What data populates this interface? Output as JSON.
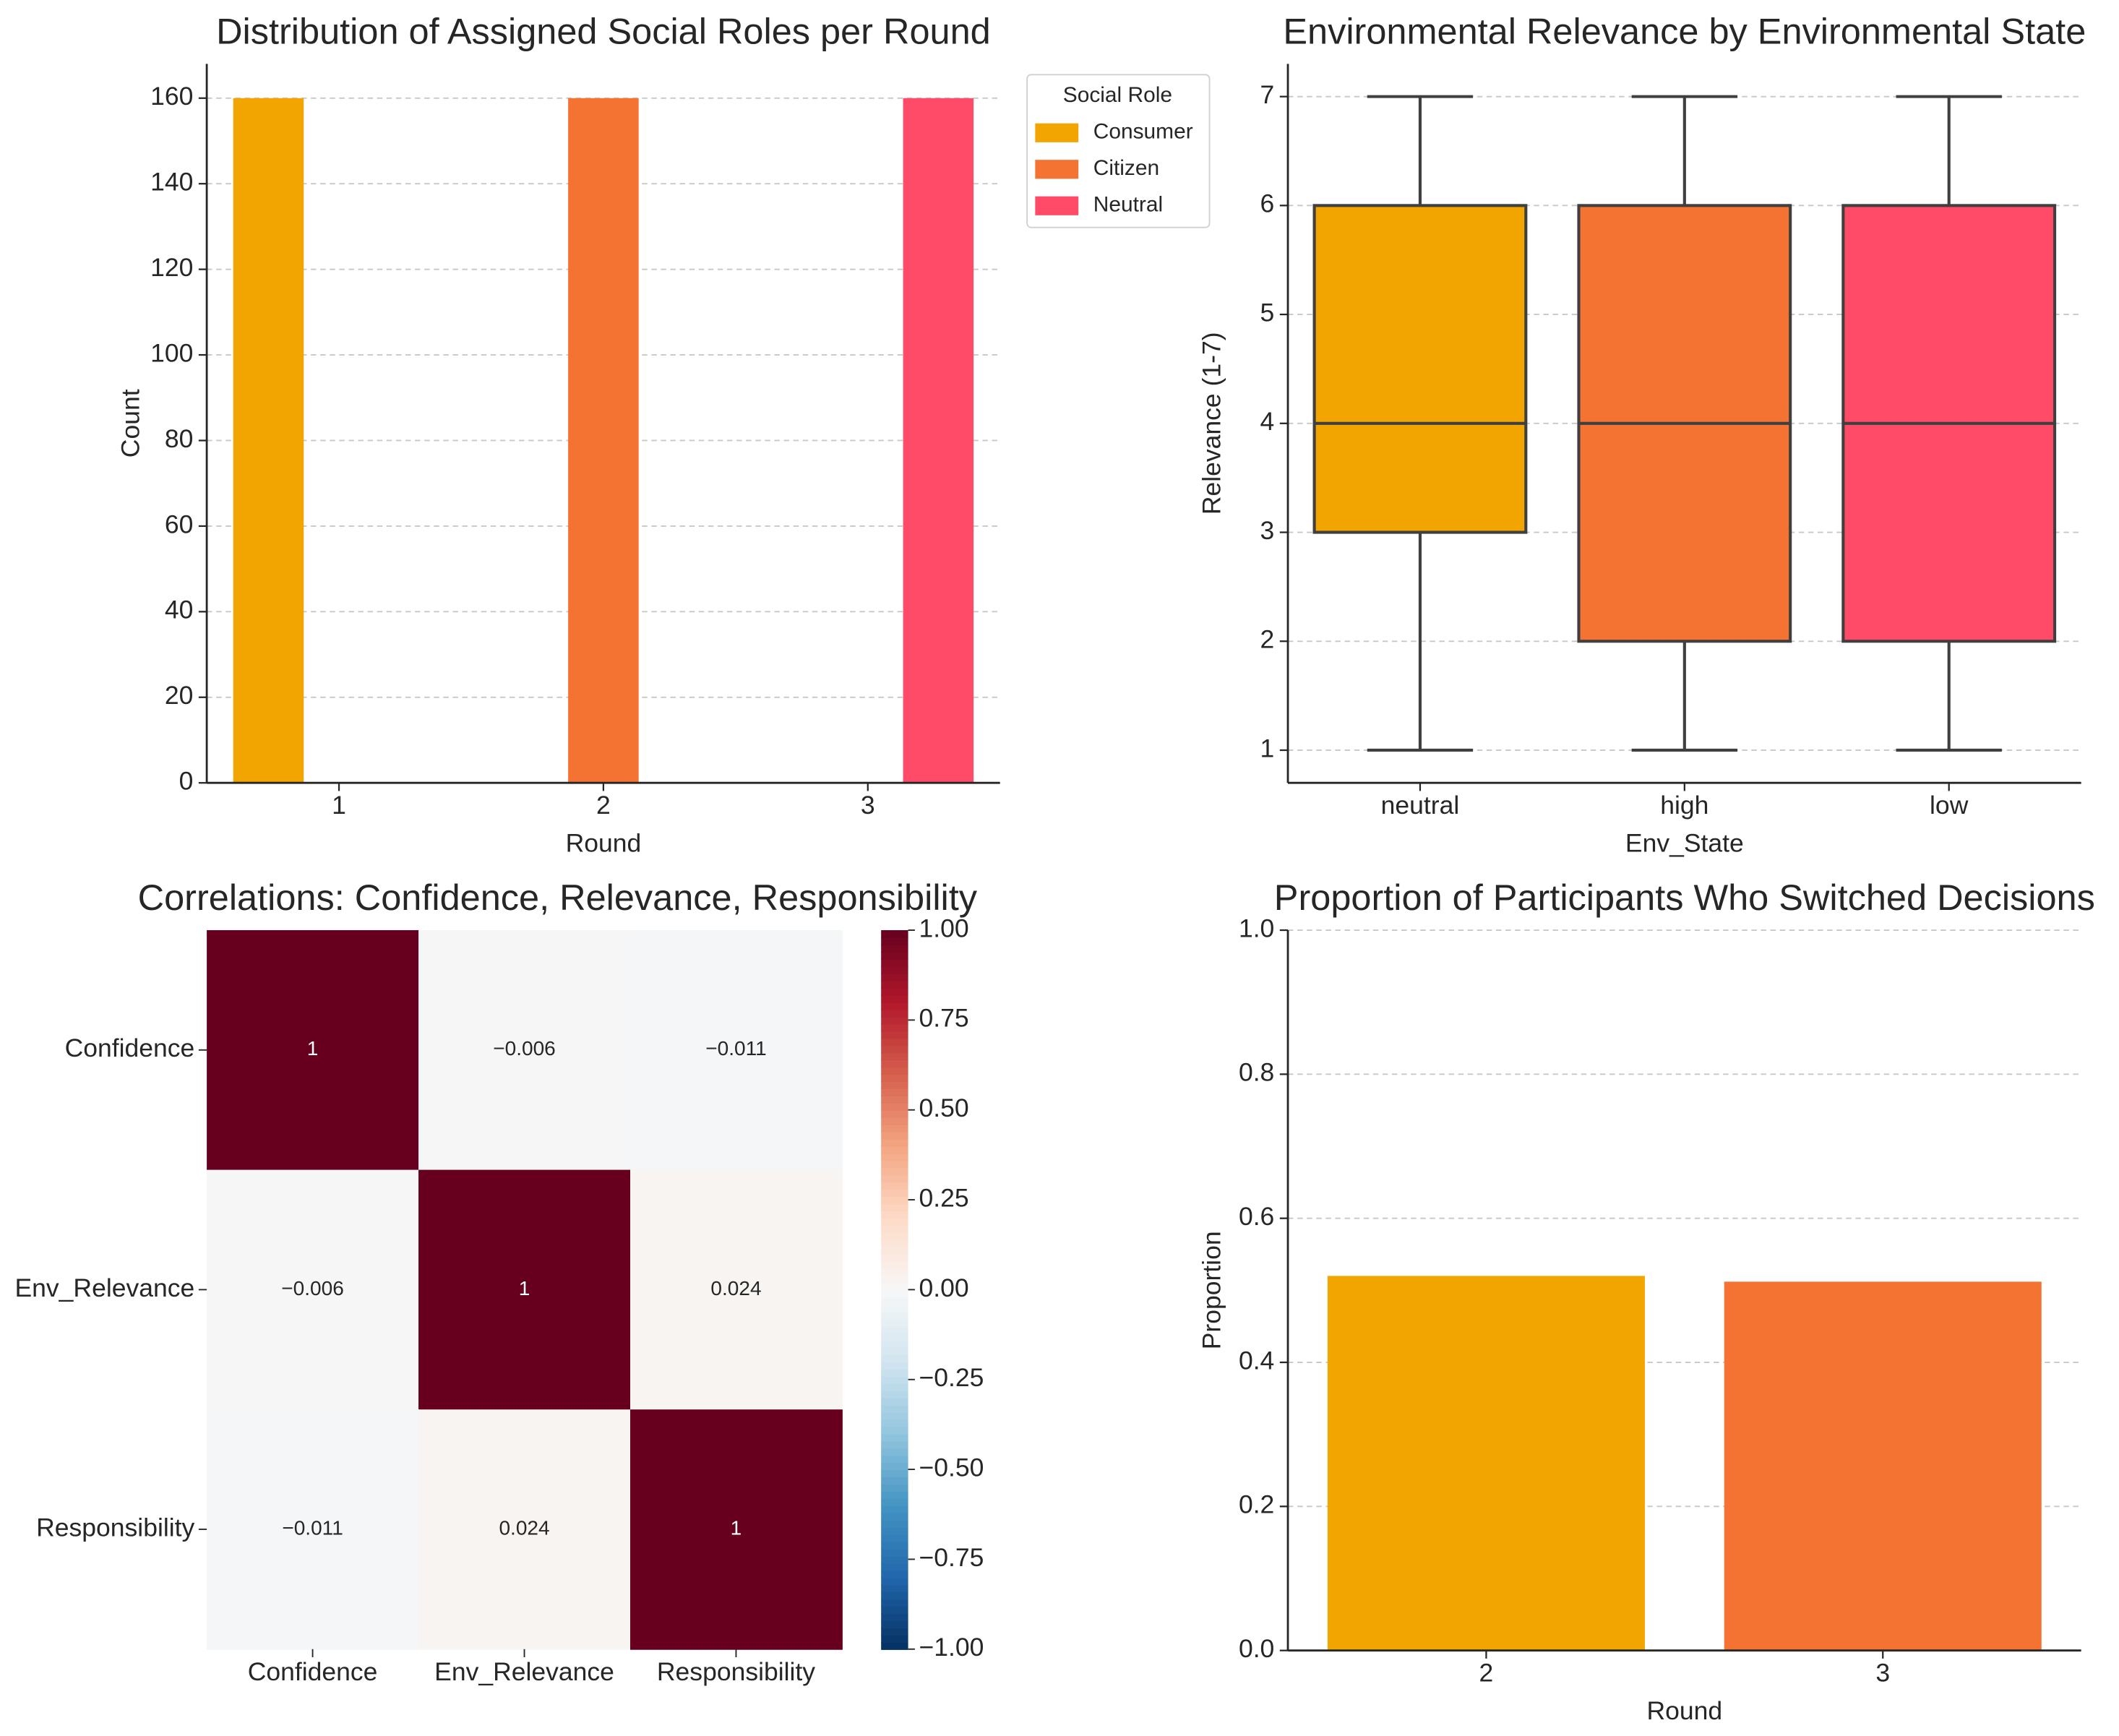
{
  "chart_data": [
    {
      "type": "bar",
      "title": "Distribution of Assigned Social Roles per Round",
      "x_label": "Round",
      "y_label": "Count",
      "categories": [
        "1",
        "2",
        "3"
      ],
      "series": [
        {
          "name": "Consumer",
          "color": "#f2a500",
          "values": [
            160,
            0,
            0
          ]
        },
        {
          "name": "Citizen",
          "color": "#f47232",
          "values": [
            0,
            160,
            0
          ]
        },
        {
          "name": "Neutral",
          "color": "#ff4a68",
          "values": [
            0,
            0,
            160
          ]
        }
      ],
      "legend_title": "Social Role",
      "legend_loc": "outside upper right",
      "ylim": [
        0,
        168
      ],
      "yticks": [
        0,
        20,
        40,
        60,
        80,
        100,
        120,
        140,
        160
      ],
      "grid": true
    },
    {
      "type": "box",
      "title": "Environmental Relevance by Environmental State",
      "x_label": "Env_State",
      "y_label": "Relevance (1-7)",
      "categories": [
        "neutral",
        "high",
        "low"
      ],
      "boxes": [
        {
          "min": 1,
          "q1": 3,
          "median": 4,
          "q3": 6,
          "max": 7
        },
        {
          "min": 1,
          "q1": 2,
          "median": 4,
          "q3": 6,
          "max": 7
        },
        {
          "min": 1,
          "q1": 2,
          "median": 4,
          "q3": 6,
          "max": 7
        }
      ],
      "colors": [
        "#f2a500",
        "#f47232",
        "#ff4a68"
      ],
      "ylim": [
        0.7,
        7.3
      ],
      "yticks": [
        1,
        2,
        3,
        4,
        5,
        6,
        7
      ],
      "grid": true
    },
    {
      "type": "heatmap",
      "title": "Correlations: Confidence, Relevance, Responsibility",
      "x_categories": [
        "Confidence",
        "Env_Relevance",
        "Responsibility"
      ],
      "y_categories": [
        "Confidence",
        "Env_Relevance",
        "Responsibility"
      ],
      "values": [
        [
          1,
          -0.006,
          -0.011
        ],
        [
          -0.006,
          1,
          0.024
        ],
        [
          -0.011,
          0.024,
          1
        ]
      ],
      "value_labels": [
        [
          "1",
          "−0.006",
          "−0.011"
        ],
        [
          "−0.006",
          "1",
          "0.024"
        ],
        [
          "−0.011",
          "0.024",
          "1"
        ]
      ],
      "colormap": "RdBu_r",
      "clim": [
        -1,
        1
      ],
      "cticks": [
        {
          "value": 1,
          "label": "1.00"
        },
        {
          "value": 0.75,
          "label": "0.75"
        },
        {
          "value": 0.5,
          "label": "0.50"
        },
        {
          "value": 0.25,
          "label": "0.25"
        },
        {
          "value": 0,
          "label": "0.00"
        },
        {
          "value": -0.25,
          "label": "−0.25"
        },
        {
          "value": -0.5,
          "label": "−0.50"
        },
        {
          "value": -0.75,
          "label": "−0.75"
        },
        {
          "value": -1,
          "label": "−1.00"
        }
      ]
    },
    {
      "type": "bar",
      "title": "Proportion of Participants Who Switched Decisions",
      "x_label": "Round",
      "y_label": "Proportion",
      "categories": [
        "2",
        "3"
      ],
      "values": [
        0.52,
        0.512
      ],
      "colors": [
        "#f2a500",
        "#f47232"
      ],
      "ylim": [
        0,
        1
      ],
      "yticks": [
        {
          "value": 0,
          "label": "0.0"
        },
        0.2,
        0.4,
        0.6,
        0.8,
        {
          "value": 1,
          "label": "1.0"
        }
      ],
      "grid": true
    }
  ]
}
